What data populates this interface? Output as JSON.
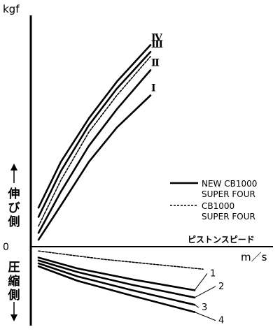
{
  "chart_data": {
    "type": "line",
    "ylabel": "kgf",
    "xlabel": "m／s",
    "x_axis_title": "ピストンスピード",
    "zero_label": "0",
    "extension_side_label": "伸び側",
    "compression_side_label": "圧縮側",
    "legend": [
      {
        "label_line1": "NEW  CB1000",
        "label_line2": "SUPER  FOUR",
        "style": "solid"
      },
      {
        "label_line1": "CB1000",
        "label_line2": "SUPER  FOUR",
        "style": "dashed"
      }
    ],
    "xlim": [
      0,
      1
    ],
    "ylim": [
      -0.3,
      1
    ],
    "extension_series": [
      {
        "name": "Ⅳ",
        "style": "solid",
        "x": [
          0,
          0.2,
          0.45,
          0.7,
          1.0
        ],
        "y": [
          0.17,
          0.37,
          0.56,
          0.72,
          0.88
        ]
      },
      {
        "name": "Ⅲ",
        "style": "solid",
        "x": [
          0,
          0.2,
          0.45,
          0.7,
          1.0
        ],
        "y": [
          0.13,
          0.33,
          0.53,
          0.69,
          0.85
        ]
      },
      {
        "name": "",
        "style": "dashed",
        "x": [
          0,
          0.2,
          0.45,
          0.7,
          1.0
        ],
        "y": [
          0.09,
          0.29,
          0.5,
          0.66,
          0.83
        ]
      },
      {
        "name": "Ⅱ",
        "style": "solid",
        "x": [
          0,
          0.2,
          0.45,
          0.7,
          1.0
        ],
        "y": [
          0.06,
          0.24,
          0.44,
          0.6,
          0.77
        ]
      },
      {
        "name": "Ⅰ",
        "style": "solid",
        "x": [
          0,
          0.2,
          0.45,
          0.7,
          1.0
        ],
        "y": [
          0.03,
          0.18,
          0.37,
          0.52,
          0.66
        ]
      }
    ],
    "compression_series": [
      {
        "name": "",
        "style": "dashed",
        "x": [
          0,
          0.4,
          1.0
        ],
        "y": [
          -0.012,
          -0.035,
          -0.062
        ]
      },
      {
        "name": "1",
        "style": "solid",
        "x": [
          0,
          0.25,
          0.6,
          1.0
        ],
        "y": [
          -0.03,
          -0.06,
          -0.09,
          -0.12
        ]
      },
      {
        "name": "2",
        "style": "solid",
        "x": [
          0,
          0.25,
          0.6,
          1.0
        ],
        "y": [
          -0.038,
          -0.07,
          -0.105,
          -0.14
        ]
      },
      {
        "name": "3",
        "style": "solid",
        "x": [
          0,
          0.25,
          0.6,
          1.0
        ],
        "y": [
          -0.046,
          -0.082,
          -0.12,
          -0.16
        ]
      },
      {
        "name": "4",
        "style": "solid",
        "x": [
          0,
          0.25,
          0.6,
          1.0
        ],
        "y": [
          -0.054,
          -0.094,
          -0.135,
          -0.18
        ]
      }
    ]
  }
}
